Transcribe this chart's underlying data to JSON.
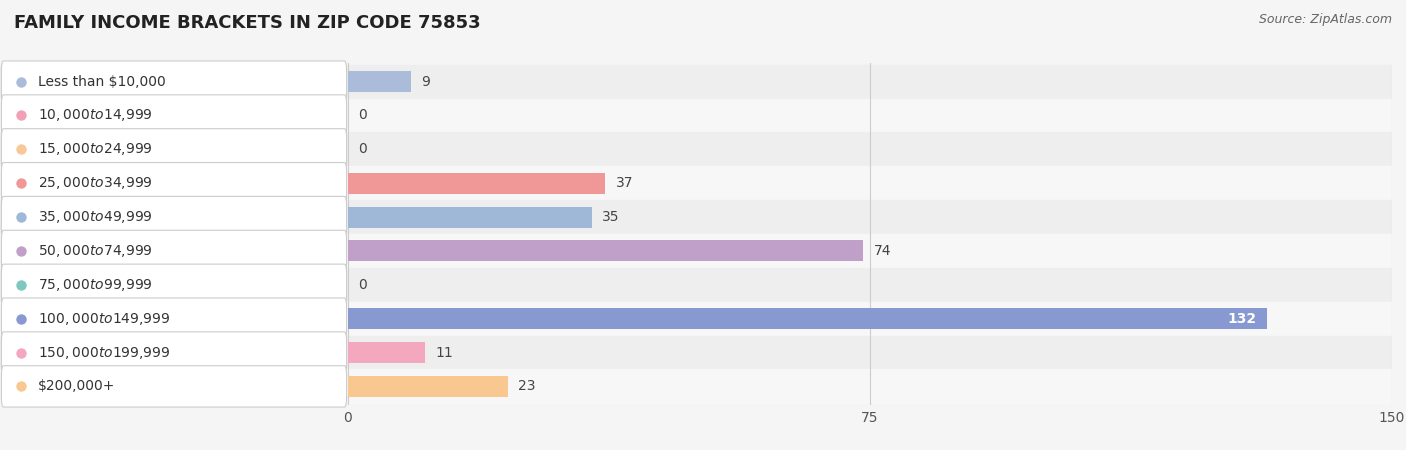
{
  "title": "FAMILY INCOME BRACKETS IN ZIP CODE 75853",
  "source": "Source: ZipAtlas.com",
  "categories": [
    "Less than $10,000",
    "$10,000 to $14,999",
    "$15,000 to $24,999",
    "$25,000 to $34,999",
    "$35,000 to $49,999",
    "$50,000 to $74,999",
    "$75,000 to $99,999",
    "$100,000 to $149,999",
    "$150,000 to $199,999",
    "$200,000+"
  ],
  "values": [
    9,
    0,
    0,
    37,
    35,
    74,
    0,
    132,
    11,
    23
  ],
  "bar_colors": [
    "#aabcda",
    "#f2a0b5",
    "#f8c898",
    "#f09898",
    "#a0b8d8",
    "#c0a0c8",
    "#7ec8c0",
    "#8898d0",
    "#f4a8c0",
    "#f8c890"
  ],
  "xlim": [
    0,
    150
  ],
  "xticks": [
    0,
    75,
    150
  ],
  "row_bg_even": "#eeeeee",
  "row_bg_odd": "#f7f7f7",
  "background_color": "#f5f5f5",
  "grid_color": "#cccccc",
  "label_box_color": "#ffffff",
  "label_box_edge": "#cccccc",
  "title_fontsize": 13,
  "label_fontsize": 10,
  "value_fontsize": 10,
  "source_fontsize": 9
}
